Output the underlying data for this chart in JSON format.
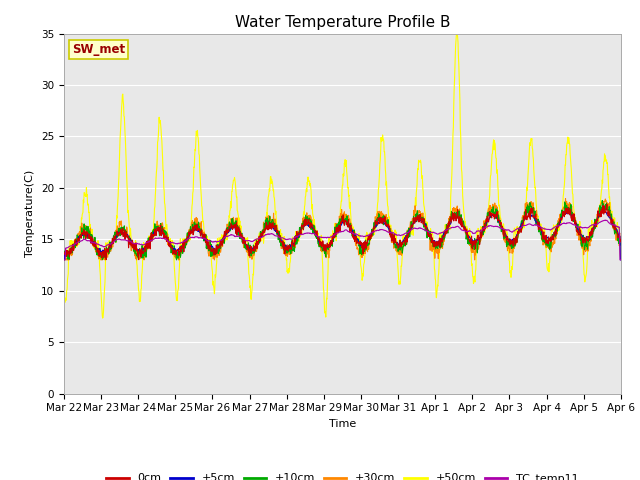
{
  "title": "Water Temperature Profile B",
  "xlabel": "Time",
  "ylabel": "Temperature(C)",
  "ylim": [
    0,
    35
  ],
  "yticks": [
    0,
    5,
    10,
    15,
    20,
    25,
    30,
    35
  ],
  "annotation_text": "SW_met",
  "annotation_bg": "#ffffcc",
  "annotation_border": "#cccc00",
  "annotation_text_color": "#990000",
  "colors": {
    "0cm": "#cc0000",
    "+5cm": "#0000cc",
    "+10cm": "#00aa00",
    "+30cm": "#ff8800",
    "+50cm": "#ffff00",
    "TC_temp11": "#aa00aa"
  },
  "legend_labels": [
    "0cm",
    "+5cm",
    "+10cm",
    "+30cm",
    "+50cm",
    "TC_temp11"
  ],
  "bg_color": "#e8e8e8",
  "grid_color": "#ffffff",
  "title_fontsize": 11,
  "axis_fontsize": 8,
  "tick_fontsize": 7.5,
  "figsize": [
    6.4,
    4.8
  ],
  "dpi": 100
}
